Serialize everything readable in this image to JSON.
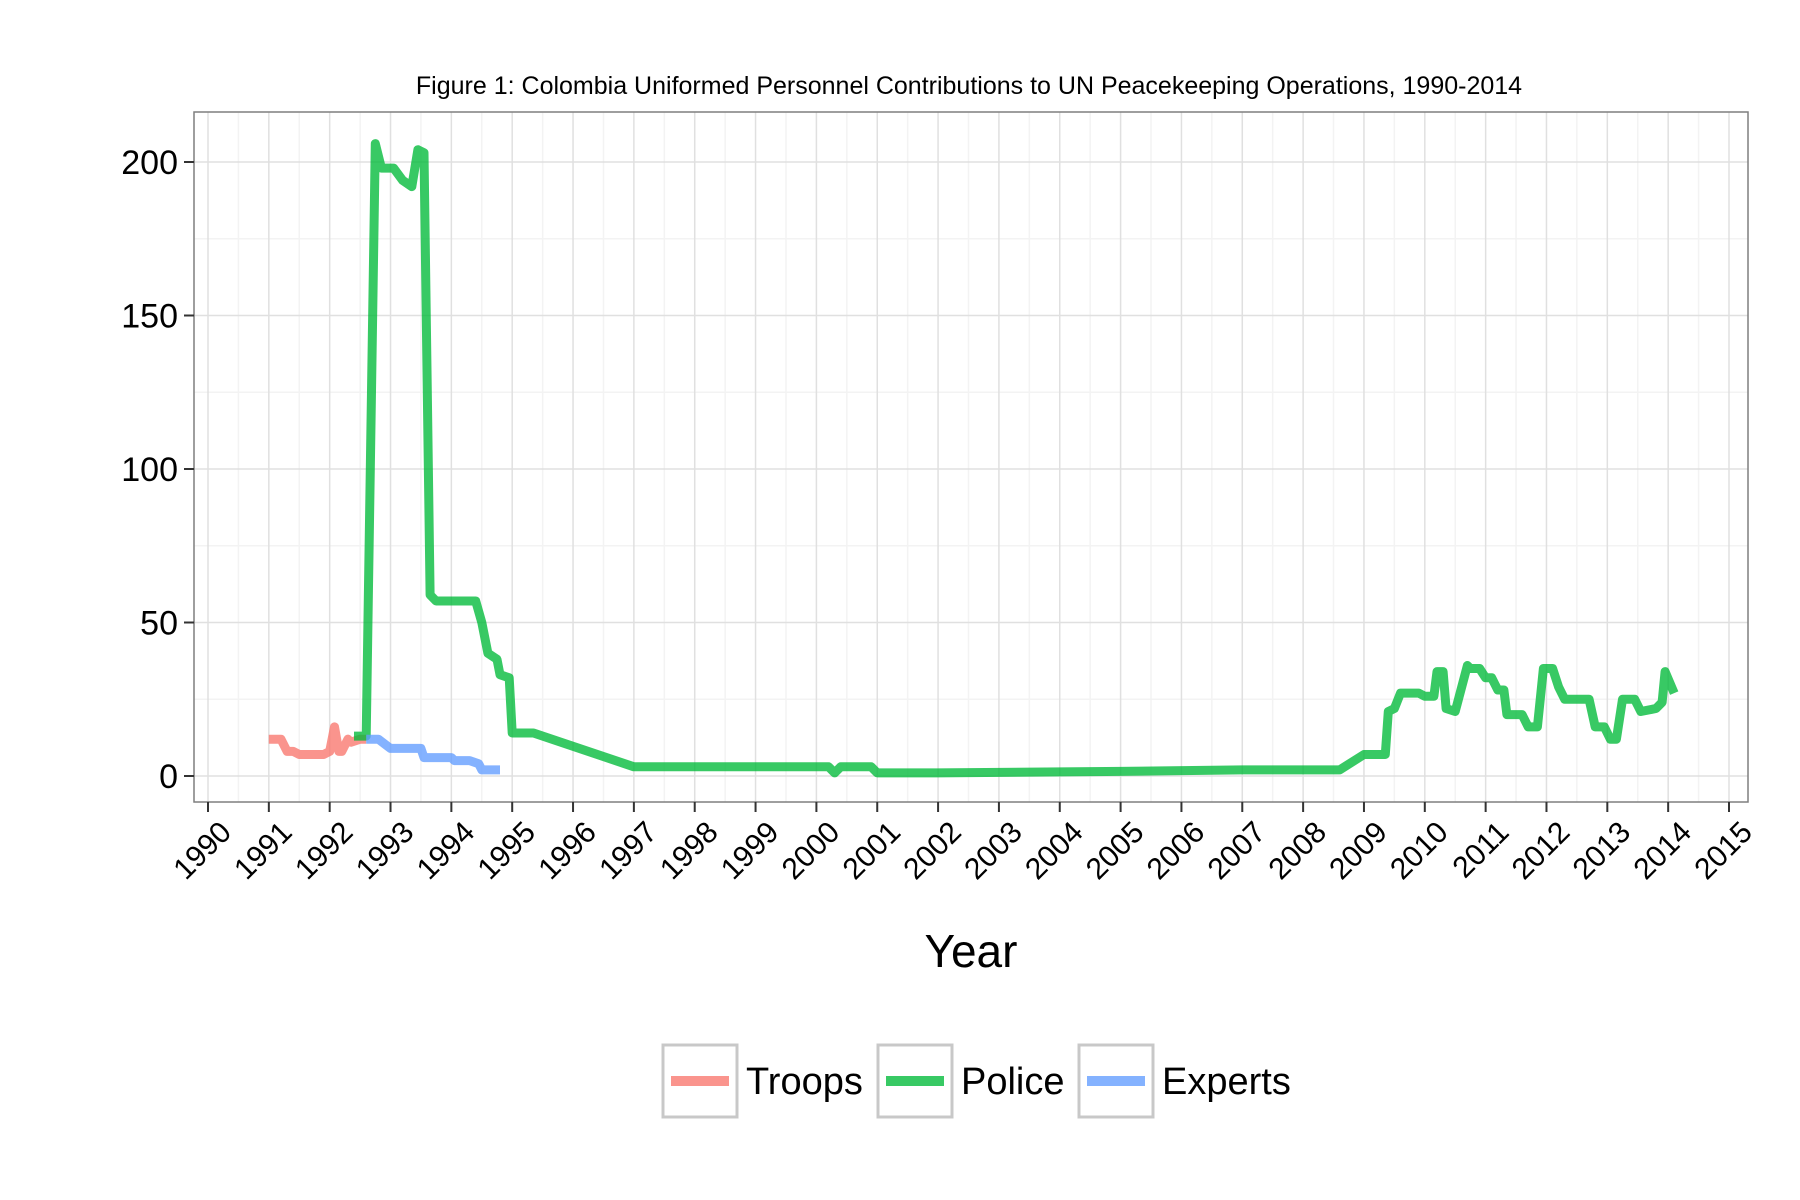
{
  "chart_data": {
    "type": "line",
    "title": "Figure 1: Colombia Uniformed Personnel Contributions to UN Peacekeeping Operations, 1990-2014",
    "xlabel": "Year",
    "ylabel": "",
    "xlim": [
      1990,
      2015
    ],
    "ylim": [
      0,
      200
    ],
    "x_ticks": [
      "1990",
      "1991",
      "1992",
      "1993",
      "1994",
      "1995",
      "1996",
      "1997",
      "1998",
      "1999",
      "2000",
      "2001",
      "2002",
      "2003",
      "2004",
      "2005",
      "2006",
      "2007",
      "2008",
      "2009",
      "2010",
      "2011",
      "2012",
      "2013",
      "2014",
      "2015"
    ],
    "y_ticks": [
      "0",
      "50",
      "100",
      "150",
      "200"
    ],
    "grid": true,
    "legend_position": "bottom",
    "series": [
      {
        "name": "Troops",
        "color": "#F8766D",
        "x": [
          1991.0,
          1991.2,
          1991.3,
          1991.4,
          1991.5,
          1991.6,
          1991.9,
          1992.0,
          1992.08,
          1992.15,
          1992.2,
          1992.3,
          1992.35,
          1992.5,
          1992.6
        ],
        "y": [
          12,
          12,
          8,
          8,
          7,
          7,
          7,
          8,
          16,
          8,
          8,
          12,
          11,
          12,
          12
        ]
      },
      {
        "name": "Police",
        "color": "#00BA38",
        "x": [
          1992.4,
          1992.6,
          1992.75,
          1992.85,
          1993.05,
          1993.2,
          1993.35,
          1993.45,
          1993.55,
          1993.65,
          1993.75,
          1993.9,
          1994.4,
          1994.5,
          1994.6,
          1994.75,
          1994.8,
          1994.95,
          1995.0,
          1995.1,
          1995.35,
          1997.0,
          1997.1,
          2000.2,
          2000.3,
          2000.4,
          2000.9,
          2001.0,
          2002.0,
          2005.0,
          2007.0,
          2008.6,
          2009.0,
          2009.35,
          2009.4,
          2009.5,
          2009.6,
          2009.9,
          2010.0,
          2010.15,
          2010.2,
          2010.3,
          2010.35,
          2010.5,
          2010.7,
          2010.75,
          2010.9,
          2011.0,
          2011.1,
          2011.2,
          2011.3,
          2011.35,
          2011.6,
          2011.7,
          2011.85,
          2011.95,
          2012.1,
          2012.2,
          2012.3,
          2012.7,
          2012.8,
          2012.95,
          2013.05,
          2013.15,
          2013.25,
          2013.45,
          2013.55,
          2013.8,
          2013.9,
          2013.95,
          2014.1
        ],
        "y": [
          13,
          13,
          206,
          198,
          198,
          194,
          192,
          204,
          203,
          59,
          57,
          57,
          57,
          50,
          40,
          38,
          33,
          32,
          14,
          14,
          14,
          3,
          3,
          3,
          1,
          3,
          3,
          1,
          1,
          1.5,
          2,
          2,
          7,
          7,
          21,
          22,
          27,
          27,
          26,
          26,
          34,
          34,
          22,
          21,
          36,
          35,
          35,
          32,
          32,
          28,
          28,
          20,
          20,
          16,
          16,
          35,
          35,
          29,
          25,
          25,
          16,
          16,
          12,
          12,
          25,
          25,
          21,
          22,
          24,
          34,
          27
        ]
      },
      {
        "name": "Experts",
        "color": "#619CFF",
        "x": [
          1992.6,
          1992.8,
          1993.0,
          1993.5,
          1993.55,
          1994.0,
          1994.05,
          1994.3,
          1994.45,
          1994.5,
          1994.65,
          1994.8
        ],
        "y": [
          12,
          12,
          9,
          9,
          6,
          6,
          5,
          5,
          4,
          2,
          2,
          2
        ]
      }
    ]
  }
}
